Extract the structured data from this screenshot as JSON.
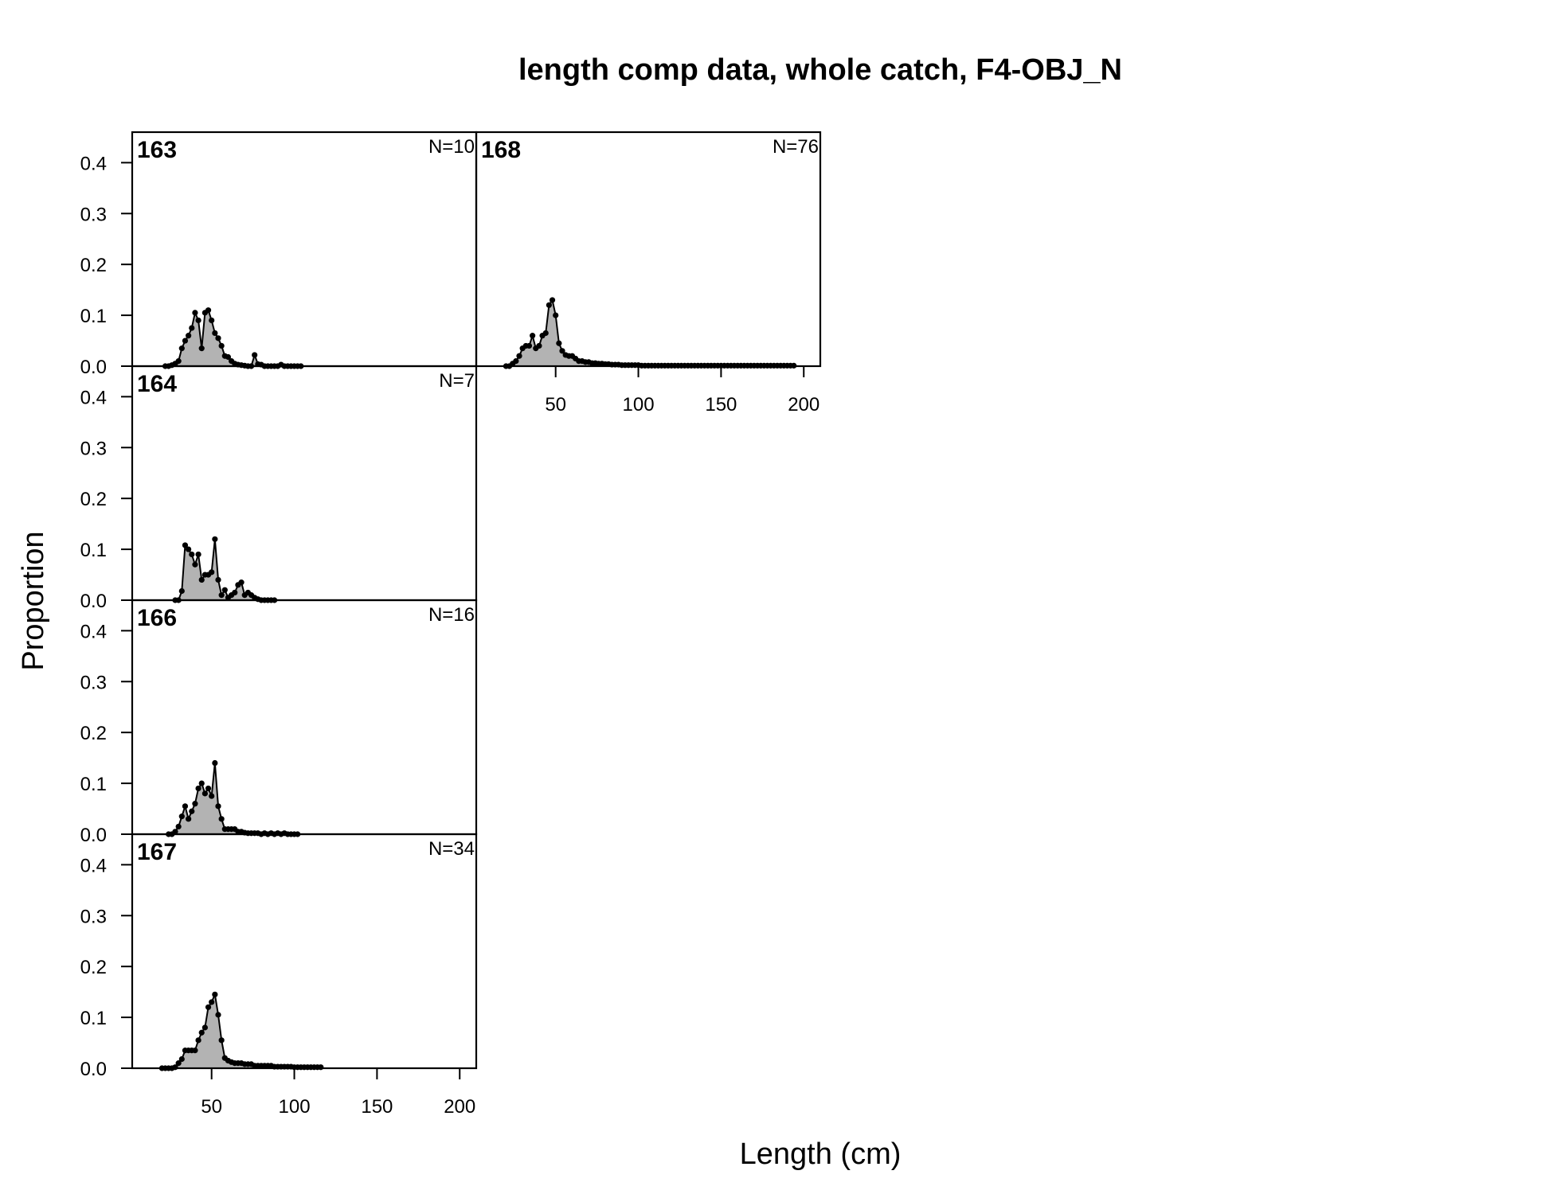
{
  "chart_data": {
    "type": "area",
    "title": "length comp data, whole catch, F4-OBJ_N",
    "xlabel": "Length (cm)",
    "ylabel": "Proportion",
    "xlim": [
      2,
      210
    ],
    "ylim": [
      0,
      0.46
    ],
    "x_ticks": [
      50,
      100,
      150,
      200
    ],
    "y_ticks": [
      0.0,
      0.1,
      0.2,
      0.3,
      0.4
    ],
    "y_tick_labels": [
      "0.0",
      "0.1",
      "0.2",
      "0.3",
      "0.4"
    ],
    "fill_color": "#b3b3b3",
    "line_color": "#000000",
    "panels": [
      {
        "label": "163",
        "n_label": "N=10",
        "x": [
          22,
          24,
          26,
          28,
          30,
          32,
          34,
          36,
          38,
          40,
          42,
          44,
          46,
          48,
          50,
          52,
          54,
          56,
          58,
          60,
          62,
          64,
          66,
          68,
          70,
          72,
          74,
          76,
          78,
          80,
          82,
          84,
          86,
          88,
          90,
          92,
          94,
          96,
          98,
          100,
          102,
          104
        ],
        "y": [
          0,
          0,
          0.002,
          0.005,
          0.01,
          0.035,
          0.05,
          0.06,
          0.075,
          0.105,
          0.09,
          0.035,
          0.105,
          0.11,
          0.09,
          0.065,
          0.055,
          0.04,
          0.02,
          0.018,
          0.01,
          0.005,
          0.003,
          0.002,
          0.001,
          0,
          0,
          0.022,
          0.004,
          0.003,
          0,
          0,
          0,
          0,
          0,
          0.003,
          0,
          0,
          0,
          0,
          0,
          0
        ]
      },
      {
        "label": "164",
        "n_label": "N=7",
        "x": [
          28,
          30,
          32,
          34,
          36,
          38,
          40,
          42,
          44,
          46,
          48,
          50,
          52,
          54,
          56,
          58,
          60,
          62,
          64,
          66,
          68,
          70,
          72,
          74,
          76,
          78,
          80,
          82,
          84,
          86,
          88
        ],
        "y": [
          0,
          0,
          0.018,
          0.108,
          0.1,
          0.09,
          0.07,
          0.09,
          0.04,
          0.05,
          0.05,
          0.055,
          0.12,
          0.04,
          0.01,
          0.02,
          0.005,
          0.01,
          0.015,
          0.03,
          0.035,
          0.01,
          0.015,
          0.01,
          0.005,
          0.002,
          0,
          0,
          0,
          0,
          0
        ]
      },
      {
        "label": "166",
        "n_label": "N=16",
        "x": [
          24,
          26,
          28,
          30,
          32,
          34,
          36,
          38,
          40,
          42,
          44,
          46,
          48,
          50,
          52,
          54,
          56,
          58,
          60,
          62,
          64,
          66,
          68,
          70,
          72,
          74,
          76,
          78,
          80,
          82,
          84,
          86,
          88,
          90,
          92,
          94,
          96,
          98,
          100,
          102
        ],
        "y": [
          0,
          0,
          0.005,
          0.015,
          0.035,
          0.055,
          0.03,
          0.045,
          0.06,
          0.09,
          0.1,
          0.08,
          0.09,
          0.075,
          0.14,
          0.055,
          0.03,
          0.01,
          0.01,
          0.01,
          0.01,
          0.005,
          0.005,
          0.003,
          0.002,
          0.002,
          0.002,
          0.002,
          0,
          0.002,
          0,
          0.002,
          0,
          0.002,
          0,
          0.002,
          0,
          0,
          0,
          0
        ]
      },
      {
        "label": "167",
        "n_label": "N=34",
        "x": [
          20,
          22,
          24,
          26,
          28,
          30,
          32,
          34,
          36,
          38,
          40,
          42,
          44,
          46,
          48,
          50,
          52,
          54,
          56,
          58,
          60,
          62,
          64,
          66,
          68,
          70,
          72,
          74,
          76,
          78,
          80,
          82,
          84,
          86,
          88,
          90,
          92,
          94,
          96,
          98,
          100,
          102,
          104,
          106,
          108,
          110,
          112,
          114,
          116
        ],
        "y": [
          0,
          0,
          0,
          0,
          0.002,
          0.01,
          0.018,
          0.035,
          0.035,
          0.035,
          0.035,
          0.055,
          0.07,
          0.08,
          0.12,
          0.13,
          0.145,
          0.105,
          0.055,
          0.02,
          0.015,
          0.012,
          0.01,
          0.01,
          0.01,
          0.008,
          0.008,
          0.008,
          0.005,
          0.005,
          0.005,
          0.005,
          0.005,
          0.005,
          0.003,
          0.003,
          0.003,
          0.003,
          0.003,
          0.003,
          0.002,
          0.002,
          0.002,
          0.002,
          0.002,
          0.002,
          0.002,
          0.002,
          0.002
        ]
      },
      {
        "label": "168",
        "n_label": "N=76",
        "x": [
          20,
          22,
          24,
          26,
          28,
          30,
          32,
          34,
          36,
          38,
          40,
          42,
          44,
          46,
          48,
          50,
          52,
          54,
          56,
          58,
          60,
          62,
          64,
          66,
          68,
          70,
          72,
          74,
          76,
          78,
          80,
          82,
          84,
          86,
          88,
          90,
          92,
          94,
          96,
          98,
          100,
          102,
          104,
          106,
          108,
          110,
          112,
          114,
          116,
          118,
          120,
          122,
          124,
          126,
          128,
          130,
          132,
          134,
          136,
          138,
          140,
          142,
          144,
          146,
          148,
          150,
          152,
          154,
          156,
          158,
          160,
          162,
          164,
          166,
          168,
          170,
          172,
          174,
          176,
          178,
          180,
          182,
          184,
          186,
          188,
          190,
          192,
          194
        ],
        "y": [
          0,
          0,
          0.005,
          0.01,
          0.02,
          0.035,
          0.04,
          0.04,
          0.06,
          0.035,
          0.04,
          0.06,
          0.065,
          0.12,
          0.13,
          0.1,
          0.045,
          0.03,
          0.022,
          0.02,
          0.02,
          0.015,
          0.01,
          0.01,
          0.008,
          0.008,
          0.006,
          0.006,
          0.005,
          0.005,
          0.004,
          0.004,
          0.003,
          0.003,
          0.003,
          0.002,
          0.002,
          0.002,
          0.002,
          0.002,
          0.002,
          0.001,
          0.001,
          0.001,
          0.001,
          0.001,
          0.001,
          0.001,
          0.001,
          0.001,
          0.001,
          0.001,
          0.001,
          0.001,
          0.001,
          0.001,
          0.001,
          0.001,
          0.001,
          0.001,
          0.001,
          0.001,
          0.001,
          0.001,
          0.001,
          0.001,
          0.001,
          0.001,
          0.001,
          0.001,
          0.001,
          0.001,
          0.001,
          0.001,
          0.001,
          0.001,
          0.001,
          0.001,
          0.001,
          0.001,
          0.001,
          0.001,
          0.001,
          0.001,
          0.001,
          0.001,
          0.001,
          0.001
        ]
      }
    ]
  }
}
